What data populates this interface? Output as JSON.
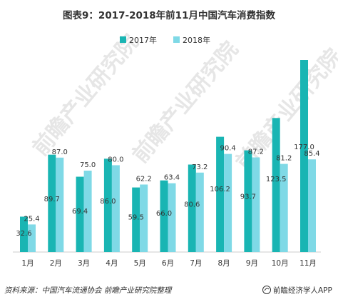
{
  "title": "图表9：2017-2018年前11月中国汽车消费指数",
  "legend": {
    "s1_label": "2017年",
    "s2_label": "2018年"
  },
  "colors": {
    "s2017": "#19b5b3",
    "s2018": "#7fd9e6",
    "baseline": "#cccccc"
  },
  "watermark": "前瞻产业研究院",
  "footer": {
    "source": "资料来源：中国汽车流通协会  前瞻产业研究院整理",
    "brand": "前瞻经济学人APP",
    "brand_icon": "bird-logo-icon"
  },
  "chart_data": {
    "type": "bar",
    "title": "图表9：2017-2018年前11月中国汽车消费指数",
    "categories": [
      "1月",
      "2月",
      "3月",
      "4月",
      "5月",
      "6月",
      "7月",
      "8月",
      "9月",
      "10月",
      "11月"
    ],
    "series": [
      {
        "name": "2017年",
        "values": [
          32.6,
          89.7,
          69.4,
          86.0,
          59.5,
          66.0,
          80.6,
          106.2,
          93.7,
          123.5,
          177.0
        ]
      },
      {
        "name": "2018年",
        "values": [
          25.4,
          87.0,
          75.0,
          80.0,
          62.2,
          63.4,
          73.2,
          90.4,
          87.2,
          81.2,
          85.4
        ]
      }
    ],
    "ylim": [
      0,
      177
    ],
    "grid": false,
    "legend_position": "top-center",
    "xlabel": "",
    "ylabel": ""
  }
}
